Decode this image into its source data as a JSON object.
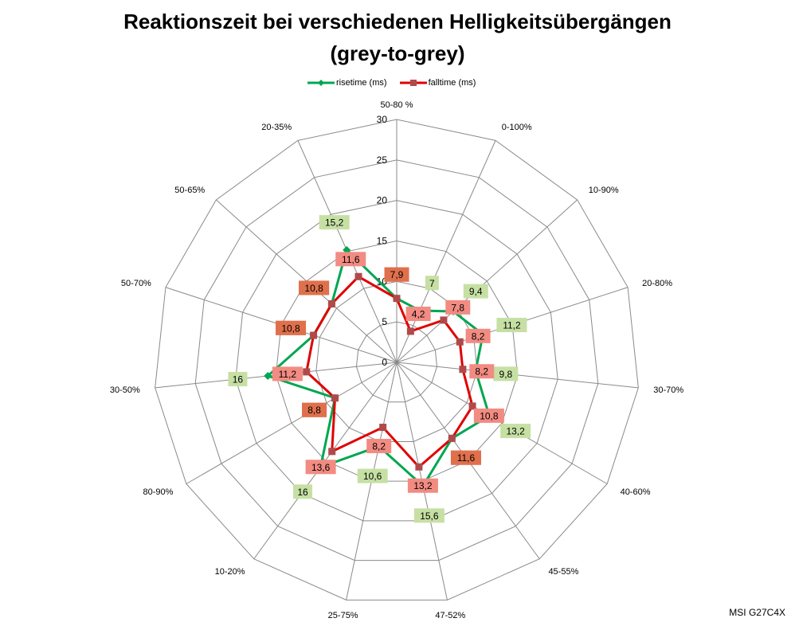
{
  "title_line1": "Reaktionszeit bei verschiedenen Helligkeitsübergängen",
  "title_line2": "(grey-to-grey)",
  "watermark": "MSI G27C4X",
  "chart_data": {
    "type": "radar",
    "title": "Reaktionszeit bei verschiedenen Helligkeitsübergängen (grey-to-grey)",
    "categories": [
      "50-80 %",
      "0-100%",
      "10-90%",
      "20-80%",
      "30-70%",
      "40-60%",
      "45-55%",
      "47-52%",
      "25-75%",
      "10-20%",
      "80-90%",
      "30-50%",
      "50-70%",
      "50-65%",
      "20-35%"
    ],
    "series": [
      {
        "name": "risetime (ms)",
        "color": "#00a651",
        "marker": "diamond",
        "values": [
          7.9,
          7,
          9.4,
          11.2,
          9.8,
          13.2,
          11.6,
          15.6,
          10.6,
          16,
          8.8,
          16,
          10.8,
          10.8,
          15.2
        ]
      },
      {
        "name": "falltime (ms)",
        "color": "#e00000",
        "marker": "square",
        "values": [
          7.9,
          4.2,
          7.8,
          8.2,
          8.2,
          10.8,
          11.6,
          13.2,
          8.2,
          13.6,
          8.8,
          11.2,
          10.8,
          10.8,
          11.6
        ]
      }
    ],
    "rlim": [
      0,
      30
    ],
    "ticks": [
      "0",
      "5",
      "10",
      "15",
      "20",
      "25",
      "30"
    ],
    "label_colors": {
      "rise": "#c6e0a4",
      "fall": "#f28b82",
      "equal": "#e0704c"
    },
    "legend": "top",
    "grid": true
  }
}
